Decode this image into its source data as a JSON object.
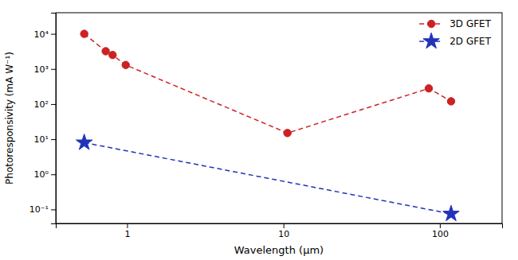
{
  "chart_data": {
    "type": "line",
    "xlabel": "Wavelength (μm)",
    "ylabel": "Photoresponsivity (mA W⁻¹)",
    "log": true,
    "xlim": [
      0.35,
      250
    ],
    "ylim": [
      0.04,
      40000
    ],
    "xticks": [
      1,
      10,
      100
    ],
    "yticks": [
      {
        "value": 0.1,
        "label": "10⁻¹"
      },
      {
        "value": 1,
        "label": "10⁰"
      },
      {
        "value": 10,
        "label": "10¹"
      },
      {
        "value": 100,
        "label": "10²"
      },
      {
        "value": 1000,
        "label": "10³"
      },
      {
        "value": 10000,
        "label": "10⁴"
      }
    ],
    "grid": false,
    "legend": "upper right",
    "series": [
      {
        "name": "3D GFET",
        "color": "#cc2222",
        "marker": "circle",
        "line_style": "dashed",
        "x": [
          0.532,
          0.73,
          0.808,
          0.98,
          10.6,
          85,
          118
        ],
        "values": [
          10000,
          3200,
          2500,
          1300,
          15,
          280,
          120
        ]
      },
      {
        "name": "2D GFET",
        "color": "#2233bb",
        "marker": "star",
        "line_style": "dashed",
        "x": [
          0.532,
          118
        ],
        "values": [
          8,
          0.075
        ]
      }
    ]
  }
}
